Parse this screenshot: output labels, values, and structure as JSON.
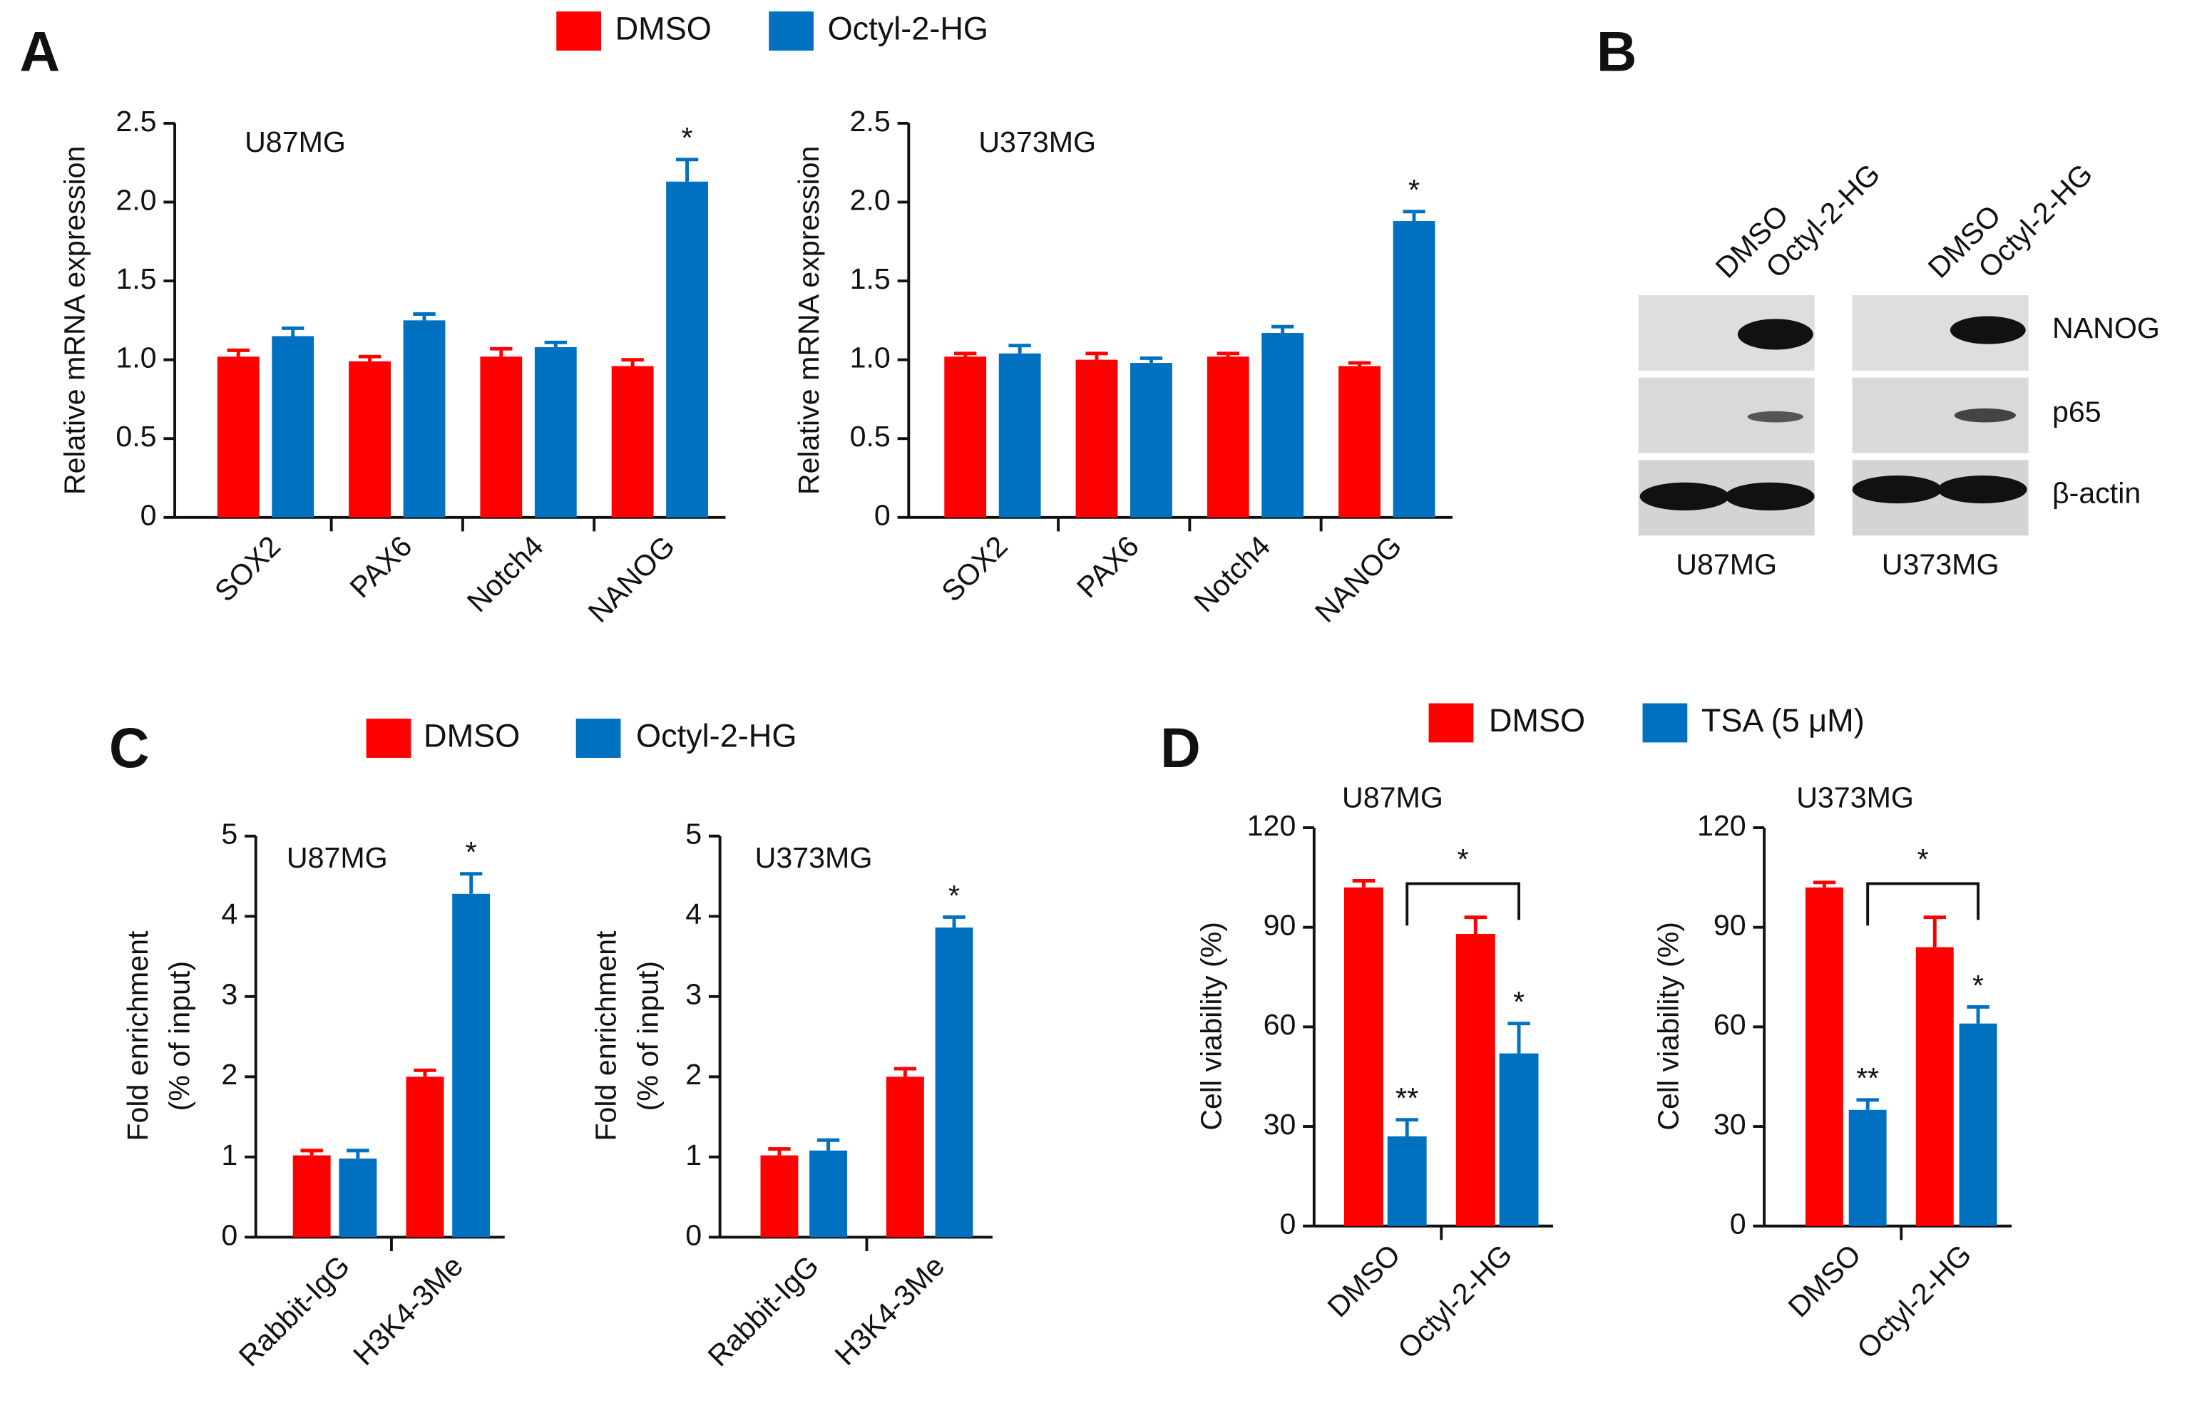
{
  "panel_labels": [
    "A",
    "B",
    "C",
    "D"
  ],
  "chart_data": [
    {
      "type": "bar",
      "title": "U87MG",
      "ylabel": [
        "Relative mRNA  expression"
      ],
      "categories": [
        "SOX2",
        "PAX6",
        "Notch4",
        "NANOG"
      ],
      "series": [
        {
          "name": "DMSO",
          "color": "#ff0000",
          "values": [
            1.02,
            0.99,
            1.02,
            0.96
          ],
          "errors": [
            0.04,
            0.03,
            0.05,
            0.04
          ],
          "annotations": [
            null,
            null,
            null,
            null
          ]
        },
        {
          "name": "Octyl-2-HG",
          "color": "#0070c0",
          "values": [
            1.15,
            1.25,
            1.08,
            2.13
          ],
          "errors": [
            0.05,
            0.04,
            0.03,
            0.14
          ],
          "annotations": [
            null,
            null,
            null,
            "*"
          ]
        }
      ],
      "ylim": [
        0,
        2.5
      ],
      "yticks": [
        0,
        0.5,
        {
          "value": 1,
          "label": "1.0"
        },
        1.5,
        {
          "value": 2,
          "label": "2.0"
        },
        2.5
      ]
    },
    {
      "type": "bar",
      "title": "U373MG",
      "ylabel": [
        "Relative mRNA  expression"
      ],
      "categories": [
        "SOX2",
        "PAX6",
        "Notch4",
        "NANOG"
      ],
      "series": [
        {
          "name": "DMSO",
          "color": "#ff0000",
          "values": [
            1.02,
            1.0,
            1.02,
            0.96
          ],
          "errors": [
            0.02,
            0.04,
            0.02,
            0.02
          ],
          "annotations": [
            null,
            null,
            null,
            null
          ]
        },
        {
          "name": "Octyl-2-HG",
          "color": "#0070c0",
          "values": [
            1.04,
            0.98,
            1.17,
            1.88
          ],
          "errors": [
            0.05,
            0.03,
            0.04,
            0.06
          ],
          "annotations": [
            null,
            null,
            null,
            "*"
          ]
        }
      ],
      "ylim": [
        0,
        2.5
      ],
      "yticks": [
        0,
        0.5,
        {
          "value": 1,
          "label": "1.0"
        },
        1.5,
        {
          "value": 2,
          "label": "2.0"
        },
        2.5
      ]
    },
    {
      "type": "bar",
      "title": "U87MG",
      "ylabel": [
        "Fold enrichment",
        "(% of input)"
      ],
      "categories": [
        "Rabbit-IgG",
        "H3K4-3Me"
      ],
      "series": [
        {
          "name": "DMSO",
          "color": "#ff0000",
          "values": [
            1.02,
            2.0
          ],
          "errors": [
            0.06,
            0.08
          ],
          "annotations": [
            null,
            null
          ]
        },
        {
          "name": "Octyl-2-HG",
          "color": "#0070c0",
          "values": [
            0.98,
            4.28
          ],
          "errors": [
            0.1,
            0.25
          ],
          "annotations": [
            null,
            "*"
          ]
        }
      ],
      "ylim": [
        0,
        5
      ],
      "yticks": [
        0,
        1,
        2,
        3,
        4,
        5
      ]
    },
    {
      "type": "bar",
      "title": "U373MG",
      "ylabel": [
        "Fold enrichment",
        "(% of input)"
      ],
      "categories": [
        "Rabbit-IgG",
        "H3K4-3Me"
      ],
      "series": [
        {
          "name": "DMSO",
          "color": "#ff0000",
          "values": [
            1.02,
            2.0
          ],
          "errors": [
            0.08,
            0.1
          ],
          "annotations": [
            null,
            null
          ]
        },
        {
          "name": "Octyl-2-HG",
          "color": "#0070c0",
          "values": [
            1.08,
            3.86
          ],
          "errors": [
            0.13,
            0.13
          ],
          "annotations": [
            null,
            "*"
          ]
        }
      ],
      "ylim": [
        0,
        5
      ],
      "yticks": [
        0,
        1,
        2,
        3,
        4,
        5
      ]
    },
    {
      "type": "bar",
      "title": "U87MG",
      "ylabel": [
        "Cell viability (%)"
      ],
      "categories": [
        "DMSO",
        "Octyl-2-HG"
      ],
      "series": [
        {
          "name": "DMSO",
          "color": "#ff0000",
          "values": [
            102,
            88
          ],
          "errors": [
            2,
            5
          ],
          "annotations": [
            null,
            null
          ]
        },
        {
          "name": "TSA (5 μM)",
          "color": "#0070c0",
          "values": [
            27,
            52
          ],
          "errors": [
            5,
            9
          ],
          "annotations": [
            "**",
            "*"
          ]
        }
      ],
      "bracket": "*",
      "ylim": [
        0,
        120
      ],
      "yticks": [
        0,
        30,
        60,
        90,
        120
      ]
    },
    {
      "type": "bar",
      "title": "U373MG",
      "ylabel": [
        "Cell viability (%)"
      ],
      "categories": [
        "DMSO",
        "Octyl-2-HG"
      ],
      "series": [
        {
          "name": "DMSO",
          "color": "#ff0000",
          "values": [
            102,
            84
          ],
          "errors": [
            1.5,
            9
          ],
          "annotations": [
            null,
            null
          ]
        },
        {
          "name": "TSA (5 μM)",
          "color": "#0070c0",
          "values": [
            35,
            61
          ],
          "errors": [
            3,
            5
          ],
          "annotations": [
            "**",
            "*"
          ]
        }
      ],
      "bracket": "*",
      "ylim": [
        0,
        120
      ],
      "yticks": [
        0,
        30,
        60,
        90,
        120
      ]
    }
  ],
  "blot": {
    "columns": [
      "DMSO",
      "Octyl-2-HG"
    ],
    "cell_lines": [
      "U87MG",
      "U373MG"
    ],
    "rows": [
      "NANOG",
      "p65",
      "β-actin"
    ]
  }
}
